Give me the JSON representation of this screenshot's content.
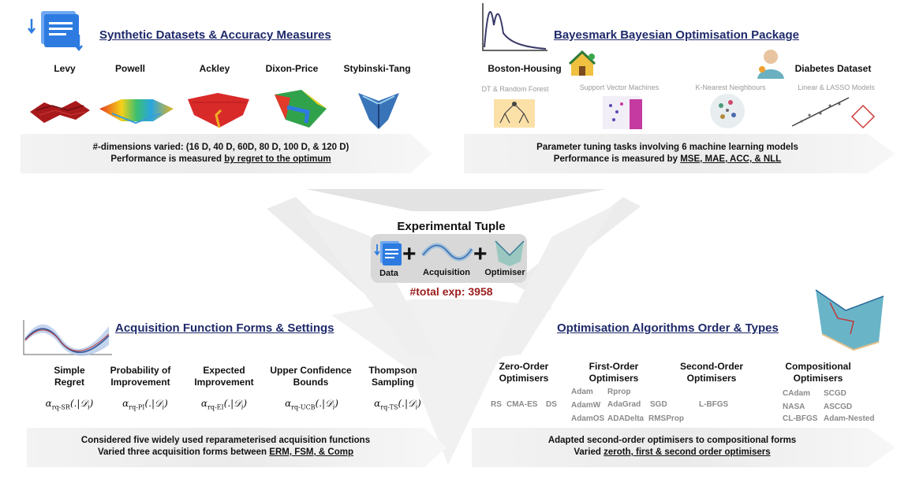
{
  "synthetic": {
    "title": "Synthetic Datasets & Accuracy Measures",
    "functions": [
      "Levy",
      "Powell",
      "Ackley",
      "Dixon-Price",
      "Stybinski-Tang"
    ],
    "banner_line1": "#-dimensions varied: (16 D, 40 D, 60D, 80 D, 100 D, & 120 D)",
    "banner_line2_prefix": "Performance is measured ",
    "banner_line2_link": "by regret to the optimum"
  },
  "bayesmark": {
    "title": "Bayesmark Bayesian Optimisation Package",
    "dataset_left": "Boston-Housing",
    "dataset_right": "Diabetes Dataset",
    "models": [
      "DT & Random Forest",
      "Support Vector Machines",
      "K-Nearest Neighbours",
      "Linear & LASSO Models"
    ],
    "banner_line1": "Parameter tuning tasks involving 6 machine learning models",
    "banner_line2_prefix": "Performance is measured by ",
    "banner_line2_link": "MSE, MAE, ACC, & NLL"
  },
  "tuple": {
    "title": "Experimental Tuple",
    "data_label": "Data",
    "acq_label": "Acquisition",
    "opt_label": "Optimiser",
    "total": "#total exp: 3958"
  },
  "acquisition": {
    "title": "Acquisition Function Forms & Settings",
    "functions": [
      {
        "line1": "Simple",
        "line2": "Regret",
        "math_sub": "rq-SR"
      },
      {
        "line1": "Probability of",
        "line2": "Improvement",
        "math_sub": "rq-PI"
      },
      {
        "line1": "Expected",
        "line2": "Improvement",
        "math_sub": "rq-EI"
      },
      {
        "line1": "Upper Confidence",
        "line2": "Bounds",
        "math_sub": "rq-UCB"
      },
      {
        "line1": "Thompson",
        "line2": "Sampling",
        "math_sub": "rq-TS"
      }
    ],
    "math_alpha": "α",
    "math_args": "(.|𝒟",
    "math_index": "i",
    "math_close": ")",
    "banner_line1": "Considered five widely used reparameterised acquisition functions",
    "banner_line2_prefix": "Varied three acquisition forms between ",
    "banner_line2_link": "ERM, FSM, & Comp"
  },
  "optimisation": {
    "title": "Optimisation Algorithms Order & Types",
    "groups": [
      {
        "line1": "Zero-Order",
        "line2": "Optimisers"
      },
      {
        "line1": "First-Order",
        "line2": "Optimisers"
      },
      {
        "line1": "Second-Order",
        "line2": "Optimisers"
      },
      {
        "line1": "Compositional",
        "line2": "Optimisers"
      }
    ],
    "zero": [
      "RS",
      "CMA-ES",
      "DS"
    ],
    "first": [
      "Adam",
      "Rprop",
      "AdamW",
      "AdaGrad",
      "SGD",
      "AdamOS",
      "ADADelta",
      "RMSProp"
    ],
    "second": [
      "L-BFGS"
    ],
    "comp": [
      "CAdam",
      "SCGD",
      "NASA",
      "ASCGD",
      "CL-BFGS",
      "Adam-Nested"
    ],
    "banner_line1": "Adapted second-order optimisers to compositional forms",
    "banner_line2_prefix": "Varied ",
    "banner_line2_link": "zeroth, first & second order optimisers"
  },
  "colors": {
    "title": "#1f2a6b",
    "banner": "#ececec",
    "funnel": "#e6e6e6",
    "total": "#9b1c1c",
    "doc_blue": "#2d7be0"
  }
}
